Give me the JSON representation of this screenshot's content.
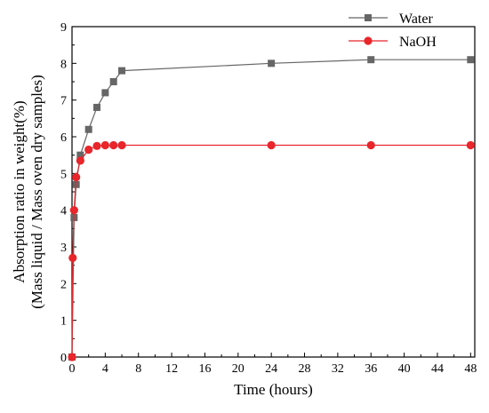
{
  "chart_data": {
    "type": "line",
    "title": "",
    "xlabel": "Time (hours)",
    "ylabel_line1": "Absorption ratio in weight(%)",
    "ylabel_line2": "(Mass liquid / Mass oven dry samples)",
    "xlim": [
      0,
      48.5
    ],
    "ylim": [
      0,
      9
    ],
    "xticks": [
      0,
      4,
      8,
      12,
      16,
      20,
      24,
      28,
      32,
      36,
      40,
      44,
      48
    ],
    "yticks": [
      0,
      1,
      2,
      3,
      4,
      5,
      6,
      7,
      8,
      9
    ],
    "grid": false,
    "legend_position": "top-right",
    "series": [
      {
        "name": "Water",
        "color": "#666666",
        "marker": "square",
        "points": [
          [
            0,
            0
          ],
          [
            0.25,
            3.8
          ],
          [
            0.5,
            4.7
          ],
          [
            1,
            5.5
          ],
          [
            2,
            6.2
          ],
          [
            3,
            6.8
          ],
          [
            4,
            7.2
          ],
          [
            5,
            7.5
          ],
          [
            6,
            7.8
          ],
          [
            24,
            8.0
          ],
          [
            36,
            8.1
          ],
          [
            48,
            8.1
          ]
        ]
      },
      {
        "name": "NaOH",
        "color": "#e8262b",
        "marker": "circle",
        "points": [
          [
            0,
            0
          ],
          [
            0.083,
            2.7
          ],
          [
            0.25,
            4.0
          ],
          [
            0.5,
            4.9
          ],
          [
            1,
            5.35
          ],
          [
            2,
            5.65
          ],
          [
            3,
            5.75
          ],
          [
            4,
            5.77
          ],
          [
            5,
            5.77
          ],
          [
            6,
            5.77
          ],
          [
            24,
            5.77
          ],
          [
            36,
            5.77
          ],
          [
            48,
            5.77
          ]
        ]
      }
    ]
  }
}
